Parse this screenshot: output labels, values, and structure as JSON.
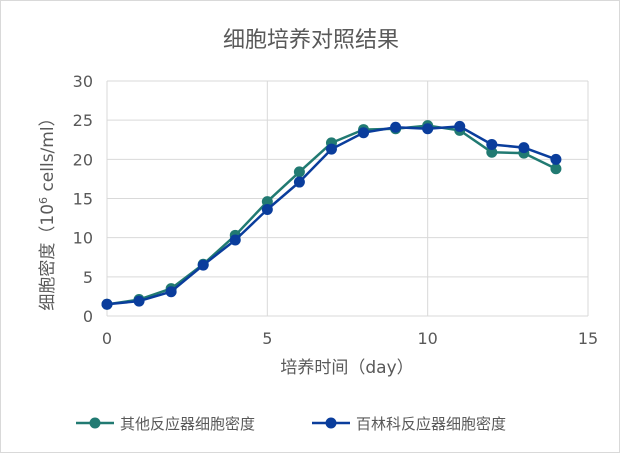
{
  "chart_data": {
    "type": "scatter",
    "title": "细胞培养对照结果",
    "xlabel": "培养时间（day）",
    "ylabel_prefix": "细胞密度（10",
    "ylabel_sup": "6",
    "ylabel_suffix": " cells/ml）",
    "xlim": [
      0,
      15
    ],
    "ylim": [
      0,
      30
    ],
    "xticks": [
      0,
      5,
      10,
      15
    ],
    "yticks": [
      0,
      5,
      10,
      15,
      20,
      25,
      30
    ],
    "grid": true,
    "legend_position": "bottom",
    "series": [
      {
        "name": "其他反应器细胞密度",
        "color": "#217A72",
        "x": [
          0,
          1,
          2,
          3,
          4,
          5,
          6,
          7,
          8,
          9,
          10,
          11,
          12,
          13,
          14
        ],
        "y": [
          1.5,
          2.1,
          3.5,
          6.6,
          10.3,
          14.6,
          18.4,
          22.1,
          23.8,
          23.9,
          24.3,
          23.7,
          20.9,
          20.8,
          18.8
        ]
      },
      {
        "name": "百林科反应器细胞密度",
        "color": "#0A3D9C",
        "x": [
          0,
          1,
          2,
          3,
          4,
          5,
          6,
          7,
          8,
          9,
          10,
          11,
          12,
          13,
          14
        ],
        "y": [
          1.5,
          1.9,
          3.1,
          6.5,
          9.7,
          13.6,
          17.1,
          21.3,
          23.4,
          24.1,
          23.9,
          24.2,
          21.9,
          21.5,
          20.0
        ]
      }
    ]
  }
}
